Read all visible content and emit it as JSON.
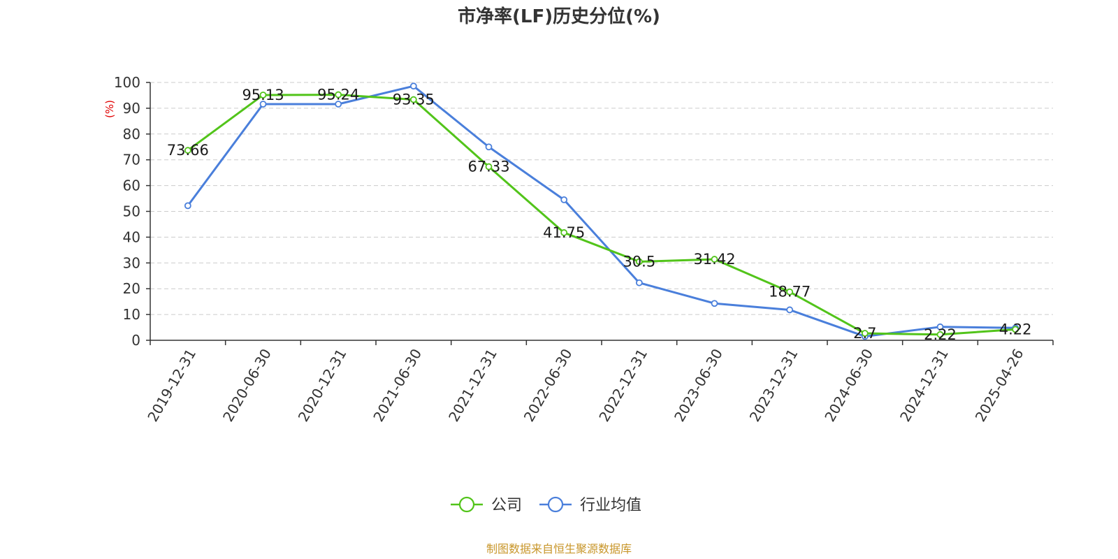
{
  "chart_data": {
    "type": "line",
    "title": "市净率(LF)历史分位(%)",
    "ylabel": "(%)",
    "xlabel": "",
    "ylim": [
      0,
      100
    ],
    "yticks": [
      0,
      10,
      20,
      30,
      40,
      50,
      60,
      70,
      80,
      90,
      100
    ],
    "grid": true,
    "legend_position": "bottom-center",
    "categories": [
      "2019-12-31",
      "2020-06-30",
      "2020-12-31",
      "2021-06-30",
      "2021-12-31",
      "2022-06-30",
      "2022-12-31",
      "2023-06-30",
      "2023-12-31",
      "2024-06-30",
      "2024-12-31",
      "2025-04-26"
    ],
    "series": [
      {
        "name": "公司",
        "color": "#52c41a",
        "values": [
          73.66,
          95.13,
          95.24,
          93.35,
          67.33,
          41.75,
          30.5,
          31.42,
          18.77,
          2.7,
          2.22,
          4.22
        ],
        "labels": [
          "73.66",
          "95.13",
          "95.24",
          "93.35",
          "67.33",
          "41.75",
          "30.5",
          "31.42",
          "18.77",
          "2.7",
          "2.22",
          "4.22"
        ]
      },
      {
        "name": "行业均值",
        "color": "#4a7fdb",
        "values": [
          52.2,
          91.6,
          91.6,
          98.6,
          75.0,
          54.5,
          22.3,
          14.3,
          11.8,
          1.5,
          5.2,
          4.8
        ]
      }
    ]
  },
  "source": "制图数据来自恒生聚源数据库"
}
